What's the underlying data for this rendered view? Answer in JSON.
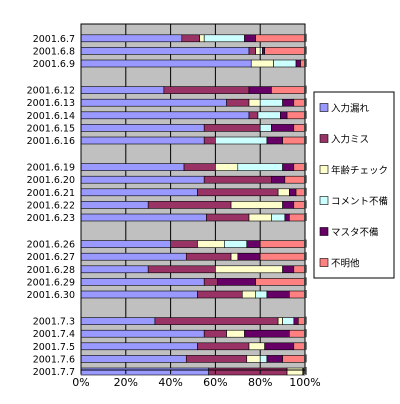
{
  "chart_data": {
    "type": "bar",
    "orientation": "horizontal",
    "stacked": "percent",
    "x_ticks": [
      "0%",
      "20%",
      "40%",
      "60%",
      "80%",
      "100%"
    ],
    "xlim": [
      0,
      100
    ],
    "grid": "vertical",
    "legend_position": "right",
    "series": [
      {
        "name": "入力漏れ",
        "color": "#9999ff"
      },
      {
        "name": "入力ミス",
        "color": "#993366"
      },
      {
        "name": "年齢チェック",
        "color": "#ffffcc"
      },
      {
        "name": "コメント不備",
        "color": "#ccffff"
      },
      {
        "name": "マスタ不備",
        "color": "#660066"
      },
      {
        "name": "不明他",
        "color": "#ff8080"
      }
    ],
    "groups": [
      {
        "rows": [
          {
            "label": "2001.6.7",
            "values": [
              45,
              8,
              2,
              18,
              5,
              22
            ]
          },
          {
            "label": "2001.6.8",
            "values": [
              75,
              3,
              2,
              1,
              1,
              18
            ]
          },
          {
            "label": "2001.6.9",
            "values": [
              76,
              0,
              10,
              10,
              2,
              2
            ]
          }
        ]
      },
      {
        "rows": [
          {
            "label": "2001.6.12",
            "values": [
              37,
              38,
              0,
              0,
              10,
              15
            ]
          },
          {
            "label": "2001.6.13",
            "values": [
              65,
              10,
              5,
              10,
              5,
              5
            ]
          },
          {
            "label": "2001.6.14",
            "values": [
              75,
              4,
              0,
              10,
              3,
              8
            ]
          },
          {
            "label": "2001.6.15",
            "values": [
              55,
              25,
              0,
              5,
              10,
              5
            ]
          },
          {
            "label": "2001.6.16",
            "values": [
              55,
              5,
              0,
              23,
              7,
              10
            ]
          }
        ]
      },
      {
        "rows": [
          {
            "label": "2001.6.19",
            "values": [
              46,
              14,
              10,
              20,
              5,
              5
            ]
          },
          {
            "label": "2001.6.20",
            "values": [
              55,
              30,
              0,
              0,
              6,
              9
            ]
          },
          {
            "label": "2001.6.21",
            "values": [
              52,
              36,
              5,
              0,
              3,
              4
            ]
          },
          {
            "label": "2001.6.22",
            "values": [
              30,
              37,
              23,
              0,
              5,
              5
            ]
          },
          {
            "label": "2001.6.23",
            "values": [
              56,
              19,
              10,
              6,
              2,
              7
            ]
          }
        ]
      },
      {
        "rows": [
          {
            "label": "2001.6.26",
            "values": [
              40,
              12,
              12,
              10,
              6,
              20
            ]
          },
          {
            "label": "2001.6.27",
            "values": [
              47,
              20,
              3,
              0,
              10,
              20
            ]
          },
          {
            "label": "2001.6.28",
            "values": [
              30,
              30,
              30,
              0,
              5,
              5
            ]
          },
          {
            "label": "2001.6.29",
            "values": [
              55,
              6,
              0,
              0,
              17,
              22
            ]
          },
          {
            "label": "2001.6.30",
            "values": [
              52,
              20,
              6,
              5,
              10,
              7
            ]
          }
        ]
      },
      {
        "rows": [
          {
            "label": "2001.7.3",
            "values": [
              33,
              55,
              2,
              5,
              2,
              3
            ]
          },
          {
            "label": "2001.7.4",
            "values": [
              55,
              10,
              8,
              0,
              20,
              7
            ]
          },
          {
            "label": "2001.7.5",
            "values": [
              52,
              23,
              7,
              0,
              13,
              5
            ]
          },
          {
            "label": "2001.7.6",
            "values": [
              47,
              27,
              6,
              3,
              7,
              10
            ]
          },
          {
            "label": "2001.7.7",
            "values": [
              57,
              35,
              7,
              0,
              1,
              0
            ]
          }
        ]
      }
    ]
  }
}
